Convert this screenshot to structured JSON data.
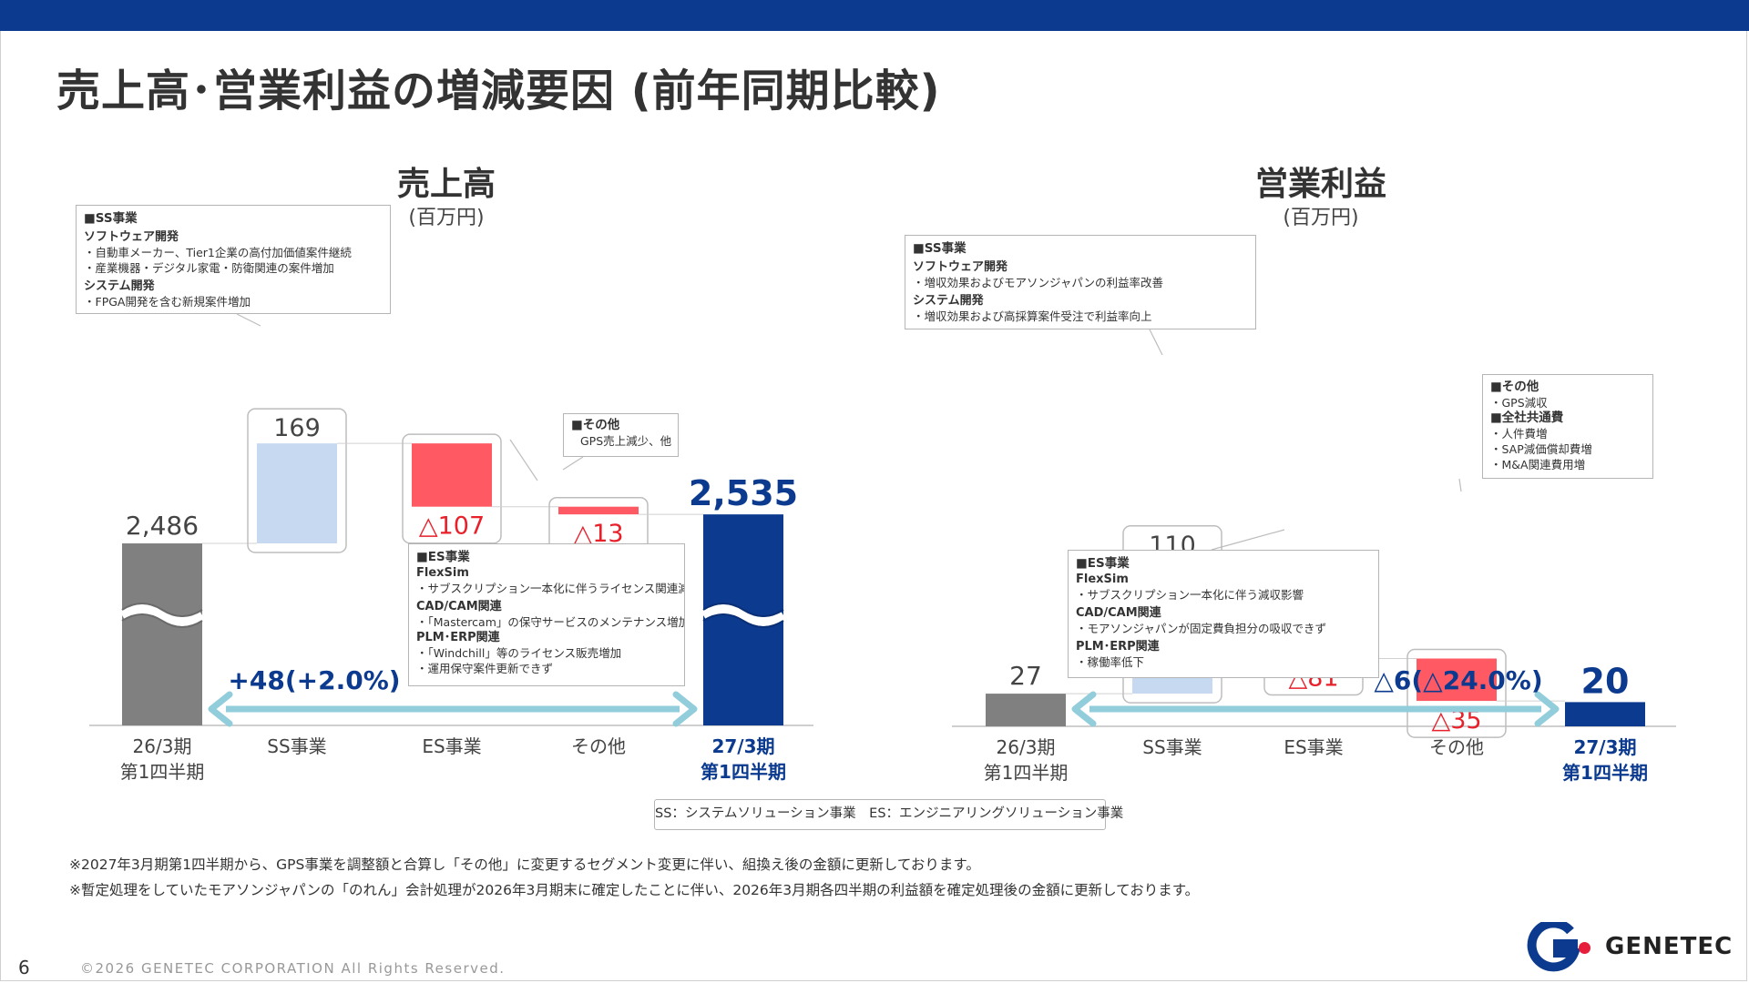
{
  "title": "売上高･営業利益の増減要因 (前年同期比較)",
  "colors": {
    "gray": "#808080",
    "increase": "#c6d9f1",
    "decrease": "#ff5a64",
    "final": "#0b3a8f",
    "arrow": "#92cddc",
    "decrease_text": "#e8202a"
  },
  "chart_data": [
    {
      "type": "bar",
      "subtype": "waterfall",
      "title": "売上高",
      "unit": "(百万円)",
      "categories": [
        "26/3期\n第1四半期",
        "SS事業",
        "ES事業",
        "その他",
        "27/3期\n第1四半期"
      ],
      "values": [
        2486,
        169,
        -107,
        -13,
        2535
      ],
      "value_labels": [
        "2,486",
        "169",
        "△107",
        "△13",
        "2,535"
      ],
      "change_label": "+48(+2.0%)",
      "axis_break": true
    },
    {
      "type": "bar",
      "subtype": "waterfall",
      "title": "営業利益",
      "unit": "(百万円)",
      "categories": [
        "26/3期\n第1四半期",
        "SS事業",
        "ES事業",
        "その他",
        "27/3期\n第1四半期"
      ],
      "values": [
        27,
        110,
        -81,
        -35,
        20
      ],
      "value_labels": [
        "27",
        "110",
        "△81",
        "△35",
        "20"
      ],
      "change_label": "△6(△24.0%)",
      "axis_break": false
    }
  ],
  "callouts": {
    "sales_ss": {
      "header": "■SS事業",
      "sections": [
        {
          "title": "ソフトウェア開発",
          "items": [
            "・自動車メーカー、Tier1企業の高付加価値案件継続",
            "・産業機器・デジタル家電・防衛関連の案件増加"
          ]
        },
        {
          "title": "システム開発",
          "items": [
            "・FPGA開発を含む新規案件増加"
          ]
        }
      ]
    },
    "sales_other": {
      "header": "■その他",
      "sections": [
        {
          "title": "",
          "items": [
            "GPS売上減少、他"
          ]
        }
      ]
    },
    "sales_es": {
      "header": "■ES事業",
      "sections": [
        {
          "title": "FlexSim",
          "items": [
            "・サブスクリプション一本化に伴うライセンス関連減少"
          ]
        },
        {
          "title": "CAD/CAM関連",
          "items": [
            "・「Mastercam」の保守サービスのメンテナンス増加"
          ]
        },
        {
          "title": "PLM･ERP関連",
          "items": [
            "・「Windchill」等のライセンス販売増加",
            "・運用保守案件更新できず"
          ]
        }
      ]
    },
    "profit_ss": {
      "header": "■SS事業",
      "sections": [
        {
          "title": "ソフトウェア開発",
          "items": [
            "・増収効果およびモアソンジャパンの利益率改善"
          ]
        },
        {
          "title": "システム開発",
          "items": [
            "・増収効果および高採算案件受注で利益率向上"
          ]
        }
      ]
    },
    "profit_other": {
      "header": "■その他",
      "sections": [
        {
          "title": "",
          "items": [
            "・GPS減収"
          ]
        },
        {
          "title": "■全社共通費",
          "items": [
            "・人件費増",
            "・SAP減価償却費増",
            "・M&A関連費用増"
          ]
        }
      ]
    },
    "profit_es": {
      "header": "■ES事業",
      "sections": [
        {
          "title": "FlexSim",
          "items": [
            "・サブスクリプション一本化に伴う減収影響"
          ]
        },
        {
          "title": "CAD/CAM関連",
          "items": [
            "・モアソンジャパンが固定費負担分の吸収できず"
          ]
        },
        {
          "title": "PLM･ERP関連",
          "items": [
            "・稼働率低下"
          ]
        }
      ]
    }
  },
  "legend": "SS：システムソリューション事業　ES：エンジニアリングソリューション事業",
  "notes": [
    "※2027年3月期第1四半期から、GPS事業を調整額と合算し「その他」に変更するセグメント変更に伴い、組換え後の金額に更新しております。",
    "※暫定処理をしていたモアソンジャパンの「のれん」会計処理が2026年3月期末に確定したことに伴い、2026年3月期各四半期の利益額を確定処理後の金額に更新しております。"
  ],
  "footer": {
    "page_number": "6",
    "copyright": "©2026 GENETEC CORPORATION All Rights Reserved.",
    "logo_text": "GENETEC"
  }
}
